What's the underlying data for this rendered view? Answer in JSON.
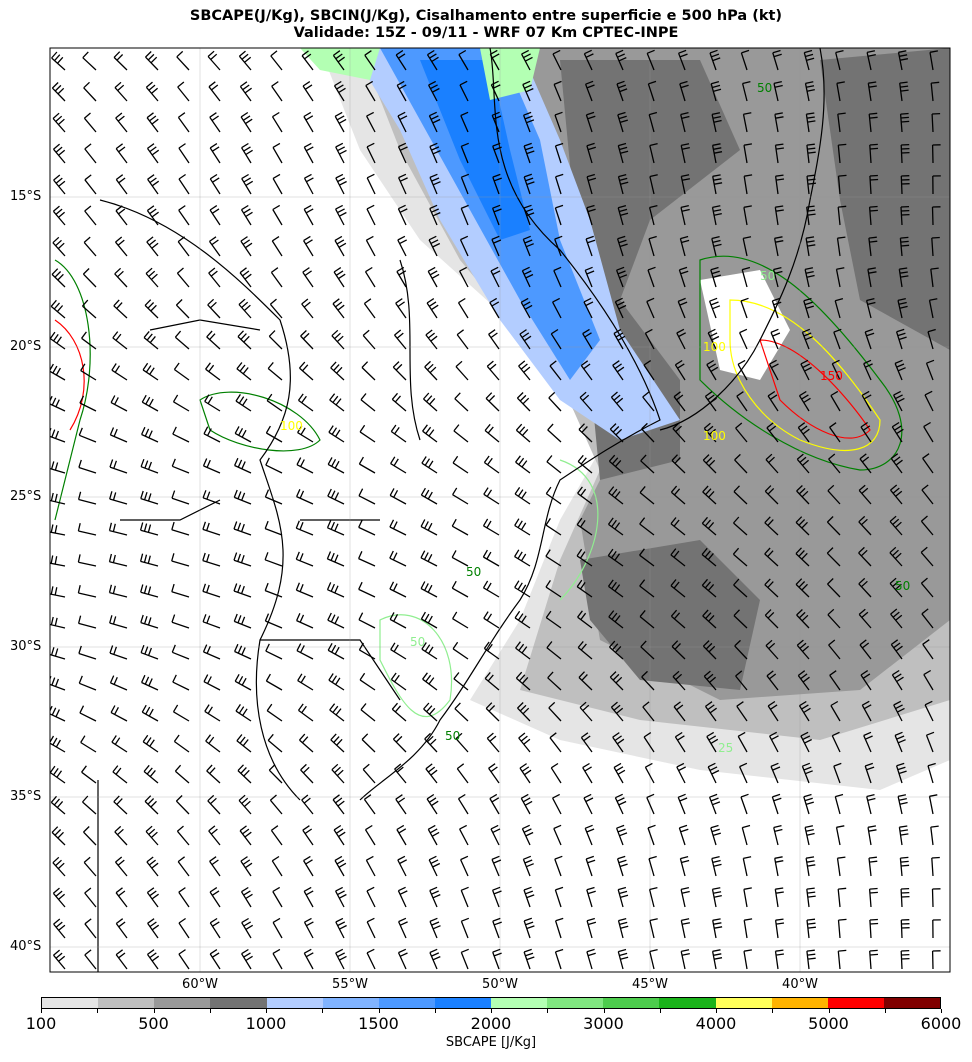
{
  "title": {
    "line1": "SBCAPE(J/Kg), SBCIN(J/Kg), Cisalhamento entre superficie e 500 hPa (kt)",
    "line2": "Validade: 15Z - 09/11 - WRF 07 Km CPTEC-INPE"
  },
  "map": {
    "lat_labels": [
      "15°S",
      "20°S",
      "25°S",
      "30°S",
      "35°S",
      "40°S"
    ],
    "lon_labels": [
      "60°W",
      "55°W",
      "50°W",
      "45°W",
      "40°W"
    ],
    "extent": {
      "lon": [
        -65,
        -35
      ],
      "lat": [
        -10,
        -40.8
      ]
    },
    "contour_labels": [
      "50",
      "100",
      "150",
      "100",
      "50",
      "50",
      "100",
      "50",
      "50",
      "50",
      "25"
    ],
    "contour_colors": {
      "25": "#90ee90",
      "50": "#008000",
      "100": "#ffff00",
      "150": "#ffa500",
      "200": "#ff0000",
      "250": "#800080"
    }
  },
  "colorbar": {
    "label": "SBCAPE [J/Kg]",
    "tick_labels": [
      "100",
      "500",
      "1000",
      "1500",
      "2000",
      "3000",
      "4000",
      "5000",
      "6000"
    ],
    "colors": [
      "#e5e5e5",
      "#bfbfbf",
      "#999999",
      "#737373",
      "#b3cdff",
      "#80b3ff",
      "#4d99ff",
      "#1a80ff",
      "#b3ffb3",
      "#80e680",
      "#4dcc4d",
      "#1ab31a",
      "#ffff5a",
      "#ffb300",
      "#ff0000",
      "#800000"
    ]
  }
}
